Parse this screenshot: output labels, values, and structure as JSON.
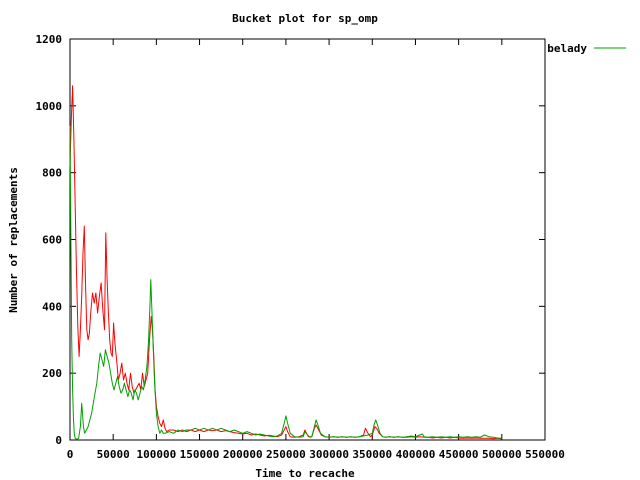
{
  "chart_data": {
    "type": "line",
    "title": "Bucket plot for sp_omp",
    "xlabel": "Time to recache",
    "ylabel": "Number of replacements",
    "xlim": [
      0,
      550000
    ],
    "ylim": [
      0,
      1200
    ],
    "xticks": [
      "0",
      "50000",
      "100000",
      "150000",
      "200000",
      "250000",
      "300000",
      "350000",
      "400000",
      "450000",
      "500000",
      "550000"
    ],
    "yticks": [
      "0",
      "200",
      "400",
      "600",
      "800",
      "1000",
      "1200"
    ],
    "legend_position": "top-right",
    "grid": false,
    "series": [
      {
        "name": "",
        "color": "#ff0000",
        "points": [
          [
            0,
            820
          ],
          [
            1500,
            960
          ],
          [
            3000,
            1060
          ],
          [
            4500,
            900
          ],
          [
            6000,
            700
          ],
          [
            7500,
            500
          ],
          [
            9000,
            340
          ],
          [
            10500,
            250
          ],
          [
            12000,
            330
          ],
          [
            13500,
            430
          ],
          [
            15000,
            560
          ],
          [
            16500,
            640
          ],
          [
            18000,
            470
          ],
          [
            19500,
            330
          ],
          [
            21000,
            300
          ],
          [
            22500,
            320
          ],
          [
            24000,
            380
          ],
          [
            26000,
            440
          ],
          [
            28000,
            410
          ],
          [
            30000,
            440
          ],
          [
            32000,
            380
          ],
          [
            34000,
            430
          ],
          [
            36000,
            470
          ],
          [
            38000,
            390
          ],
          [
            40000,
            330
          ],
          [
            41500,
            620
          ],
          [
            43000,
            480
          ],
          [
            44500,
            380
          ],
          [
            46000,
            300
          ],
          [
            47500,
            260
          ],
          [
            49000,
            250
          ],
          [
            50500,
            350
          ],
          [
            52000,
            290
          ],
          [
            54000,
            240
          ],
          [
            56000,
            180
          ],
          [
            58000,
            200
          ],
          [
            60000,
            230
          ],
          [
            62000,
            180
          ],
          [
            64000,
            200
          ],
          [
            66000,
            170
          ],
          [
            68000,
            150
          ],
          [
            70000,
            200
          ],
          [
            72000,
            160
          ],
          [
            74000,
            140
          ],
          [
            76000,
            150
          ],
          [
            78000,
            160
          ],
          [
            80000,
            170
          ],
          [
            82000,
            150
          ],
          [
            84000,
            200
          ],
          [
            86000,
            160
          ],
          [
            88000,
            180
          ],
          [
            90000,
            200
          ],
          [
            92000,
            300
          ],
          [
            94000,
            370
          ],
          [
            95500,
            330
          ],
          [
            97000,
            250
          ],
          [
            98500,
            150
          ],
          [
            100000,
            100
          ],
          [
            102000,
            70
          ],
          [
            104000,
            50
          ],
          [
            106000,
            40
          ],
          [
            108000,
            60
          ],
          [
            110000,
            35
          ],
          [
            112000,
            25
          ],
          [
            115000,
            30
          ],
          [
            120000,
            30
          ],
          [
            125000,
            25
          ],
          [
            130000,
            30
          ],
          [
            135000,
            25
          ],
          [
            140000,
            30
          ],
          [
            145000,
            25
          ],
          [
            150000,
            30
          ],
          [
            155000,
            25
          ],
          [
            160000,
            30
          ],
          [
            165000,
            28
          ],
          [
            170000,
            30
          ],
          [
            175000,
            25
          ],
          [
            180000,
            28
          ],
          [
            185000,
            25
          ],
          [
            190000,
            22
          ],
          [
            195000,
            20
          ],
          [
            200000,
            18
          ],
          [
            205000,
            20
          ],
          [
            210000,
            15
          ],
          [
            215000,
            18
          ],
          [
            220000,
            15
          ],
          [
            225000,
            12
          ],
          [
            230000,
            14
          ],
          [
            235000,
            12
          ],
          [
            240000,
            10
          ],
          [
            245000,
            15
          ],
          [
            248000,
            30
          ],
          [
            250000,
            40
          ],
          [
            252000,
            25
          ],
          [
            255000,
            10
          ],
          [
            260000,
            8
          ],
          [
            265000,
            10
          ],
          [
            270000,
            15
          ],
          [
            272000,
            30
          ],
          [
            274000,
            20
          ],
          [
            276000,
            10
          ],
          [
            280000,
            10
          ],
          [
            283000,
            35
          ],
          [
            285000,
            45
          ],
          [
            288000,
            30
          ],
          [
            291000,
            15
          ],
          [
            295000,
            10
          ],
          [
            300000,
            8
          ],
          [
            305000,
            10
          ],
          [
            310000,
            8
          ],
          [
            315000,
            10
          ],
          [
            320000,
            8
          ],
          [
            325000,
            10
          ],
          [
            330000,
            8
          ],
          [
            335000,
            10
          ],
          [
            340000,
            15
          ],
          [
            342000,
            35
          ],
          [
            345000,
            20
          ],
          [
            348000,
            10
          ],
          [
            350000,
            15
          ],
          [
            353000,
            40
          ],
          [
            355000,
            35
          ],
          [
            358000,
            20
          ],
          [
            362000,
            10
          ],
          [
            365000,
            8
          ],
          [
            370000,
            10
          ],
          [
            375000,
            8
          ],
          [
            380000,
            10
          ],
          [
            385000,
            8
          ],
          [
            390000,
            8
          ],
          [
            395000,
            10
          ],
          [
            400000,
            8
          ],
          [
            405000,
            10
          ],
          [
            410000,
            8
          ],
          [
            415000,
            8
          ],
          [
            420000,
            6
          ],
          [
            425000,
            8
          ],
          [
            430000,
            6
          ],
          [
            435000,
            8
          ],
          [
            440000,
            6
          ],
          [
            445000,
            8
          ],
          [
            450000,
            6
          ],
          [
            455000,
            5
          ],
          [
            460000,
            6
          ],
          [
            465000,
            5
          ],
          [
            470000,
            6
          ],
          [
            475000,
            5
          ],
          [
            480000,
            5
          ],
          [
            485000,
            5
          ],
          [
            490000,
            4
          ],
          [
            495000,
            5
          ],
          [
            500000,
            4
          ]
        ]
      },
      {
        "name": "belady",
        "color": "#00a000",
        "points": [
          [
            0,
            940
          ],
          [
            1000,
            600
          ],
          [
            2000,
            300
          ],
          [
            3000,
            150
          ],
          [
            4000,
            60
          ],
          [
            5000,
            20
          ],
          [
            6000,
            5
          ],
          [
            8000,
            2
          ],
          [
            10000,
            5
          ],
          [
            12000,
            40
          ],
          [
            13500,
            110
          ],
          [
            14500,
            80
          ],
          [
            15500,
            40
          ],
          [
            17000,
            20
          ],
          [
            19000,
            30
          ],
          [
            21000,
            40
          ],
          [
            23000,
            60
          ],
          [
            25000,
            80
          ],
          [
            27000,
            110
          ],
          [
            29000,
            140
          ],
          [
            31000,
            170
          ],
          [
            33000,
            220
          ],
          [
            35000,
            260
          ],
          [
            37000,
            240
          ],
          [
            39000,
            220
          ],
          [
            41000,
            270
          ],
          [
            43000,
            250
          ],
          [
            45000,
            230
          ],
          [
            47000,
            200
          ],
          [
            49000,
            170
          ],
          [
            51000,
            150
          ],
          [
            53000,
            170
          ],
          [
            55000,
            190
          ],
          [
            57000,
            160
          ],
          [
            59000,
            140
          ],
          [
            61000,
            150
          ],
          [
            63000,
            170
          ],
          [
            65000,
            150
          ],
          [
            67000,
            130
          ],
          [
            69000,
            150
          ],
          [
            71000,
            140
          ],
          [
            73000,
            120
          ],
          [
            75000,
            150
          ],
          [
            77000,
            140
          ],
          [
            79000,
            120
          ],
          [
            81000,
            140
          ],
          [
            83000,
            160
          ],
          [
            85000,
            150
          ],
          [
            87000,
            180
          ],
          [
            89000,
            220
          ],
          [
            91000,
            300
          ],
          [
            92500,
            400
          ],
          [
            93500,
            480
          ],
          [
            95000,
            380
          ],
          [
            96500,
            270
          ],
          [
            98000,
            170
          ],
          [
            100000,
            80
          ],
          [
            102000,
            40
          ],
          [
            104000,
            20
          ],
          [
            106000,
            30
          ],
          [
            108000,
            20
          ],
          [
            110000,
            20
          ],
          [
            115000,
            25
          ],
          [
            120000,
            20
          ],
          [
            125000,
            30
          ],
          [
            130000,
            25
          ],
          [
            135000,
            30
          ],
          [
            140000,
            30
          ],
          [
            145000,
            35
          ],
          [
            150000,
            30
          ],
          [
            155000,
            35
          ],
          [
            160000,
            30
          ],
          [
            165000,
            35
          ],
          [
            170000,
            30
          ],
          [
            175000,
            35
          ],
          [
            180000,
            30
          ],
          [
            185000,
            25
          ],
          [
            190000,
            30
          ],
          [
            195000,
            25
          ],
          [
            200000,
            20
          ],
          [
            205000,
            25
          ],
          [
            210000,
            20
          ],
          [
            215000,
            15
          ],
          [
            220000,
            18
          ],
          [
            225000,
            15
          ],
          [
            230000,
            12
          ],
          [
            235000,
            10
          ],
          [
            240000,
            12
          ],
          [
            245000,
            20
          ],
          [
            248000,
            50
          ],
          [
            250000,
            72
          ],
          [
            252000,
            50
          ],
          [
            255000,
            20
          ],
          [
            260000,
            10
          ],
          [
            265000,
            8
          ],
          [
            270000,
            10
          ],
          [
            272000,
            25
          ],
          [
            275000,
            15
          ],
          [
            278000,
            8
          ],
          [
            280000,
            10
          ],
          [
            283000,
            40
          ],
          [
            285000,
            60
          ],
          [
            287000,
            45
          ],
          [
            290000,
            20
          ],
          [
            295000,
            10
          ],
          [
            300000,
            8
          ],
          [
            305000,
            10
          ],
          [
            310000,
            8
          ],
          [
            315000,
            10
          ],
          [
            320000,
            8
          ],
          [
            325000,
            10
          ],
          [
            330000,
            8
          ],
          [
            335000,
            10
          ],
          [
            340000,
            12
          ],
          [
            345000,
            15
          ],
          [
            350000,
            20
          ],
          [
            352000,
            45
          ],
          [
            354000,
            60
          ],
          [
            356000,
            45
          ],
          [
            359000,
            20
          ],
          [
            362000,
            10
          ],
          [
            365000,
            8
          ],
          [
            370000,
            10
          ],
          [
            375000,
            8
          ],
          [
            380000,
            10
          ],
          [
            385000,
            8
          ],
          [
            390000,
            10
          ],
          [
            395000,
            12
          ],
          [
            400000,
            10
          ],
          [
            405000,
            15
          ],
          [
            408000,
            18
          ],
          [
            410000,
            10
          ],
          [
            415000,
            8
          ],
          [
            420000,
            10
          ],
          [
            425000,
            8
          ],
          [
            430000,
            10
          ],
          [
            435000,
            8
          ],
          [
            440000,
            10
          ],
          [
            445000,
            8
          ],
          [
            450000,
            10
          ],
          [
            455000,
            8
          ],
          [
            460000,
            10
          ],
          [
            465000,
            8
          ],
          [
            470000,
            10
          ],
          [
            475000,
            8
          ],
          [
            480000,
            15
          ],
          [
            485000,
            10
          ],
          [
            490000,
            8
          ],
          [
            495000,
            6
          ],
          [
            500000,
            5
          ]
        ]
      }
    ]
  }
}
